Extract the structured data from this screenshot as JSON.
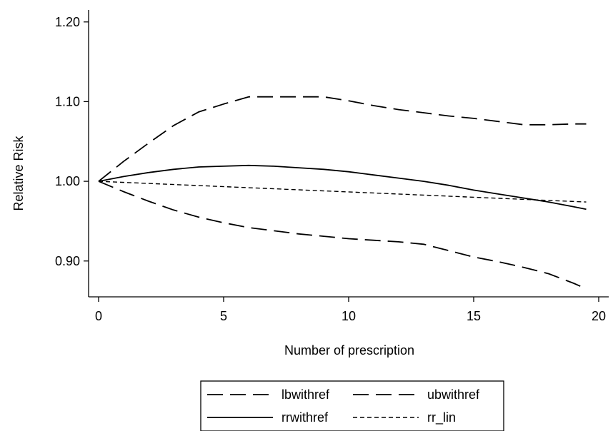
{
  "chart_data": {
    "type": "line",
    "title": "",
    "xlabel": "Number of prescription",
    "ylabel": "Relative Risk",
    "xlim": [
      -0.4,
      20.4
    ],
    "ylim": [
      0.855,
      1.215
    ],
    "xticks": [
      0,
      5,
      10,
      15,
      20
    ],
    "xtick_labels": [
      "0",
      "5",
      "10",
      "15",
      "20"
    ],
    "yticks": [
      0.9,
      1.0,
      1.1,
      1.2
    ],
    "ytick_labels": [
      "0.90",
      "1.00",
      "1.10",
      "1.20"
    ],
    "grid": false,
    "legend_position": "bottom",
    "series": [
      {
        "name": "lbwithref",
        "style": "long-dash",
        "color": "#000000",
        "x": [
          0,
          1,
          2,
          3,
          4,
          5,
          6,
          7,
          8,
          9,
          10,
          11,
          12,
          13,
          14,
          15,
          16,
          17,
          18,
          19,
          19.5
        ],
        "y": [
          1.0,
          0.987,
          0.975,
          0.964,
          0.955,
          0.948,
          0.942,
          0.938,
          0.934,
          0.931,
          0.928,
          0.926,
          0.924,
          0.921,
          0.913,
          0.905,
          0.899,
          0.892,
          0.884,
          0.872,
          0.865
        ]
      },
      {
        "name": "ubwithref",
        "style": "long-dash",
        "color": "#000000",
        "x": [
          0,
          1,
          2,
          3,
          4,
          5,
          6,
          7,
          8,
          9,
          10,
          11,
          12,
          13,
          14,
          15,
          16,
          17,
          18,
          19,
          19.5
        ],
        "y": [
          1.0,
          1.025,
          1.048,
          1.07,
          1.087,
          1.097,
          1.106,
          1.106,
          1.106,
          1.106,
          1.101,
          1.095,
          1.09,
          1.086,
          1.082,
          1.079,
          1.075,
          1.071,
          1.071,
          1.072,
          1.072
        ]
      },
      {
        "name": "rrwithref",
        "style": "solid",
        "color": "#000000",
        "x": [
          0,
          1,
          2,
          3,
          4,
          5,
          6,
          7,
          8,
          9,
          10,
          11,
          12,
          13,
          14,
          15,
          16,
          17,
          18,
          19,
          19.5
        ],
        "y": [
          1.0,
          1.006,
          1.011,
          1.015,
          1.018,
          1.019,
          1.02,
          1.019,
          1.017,
          1.015,
          1.012,
          1.008,
          1.004,
          1.0,
          0.995,
          0.989,
          0.984,
          0.979,
          0.974,
          0.968,
          0.965
        ]
      },
      {
        "name": "rr_lin",
        "style": "short-dash",
        "color": "#000000",
        "x": [
          0,
          19.5
        ],
        "y": [
          1.0,
          0.974
        ]
      }
    ]
  }
}
